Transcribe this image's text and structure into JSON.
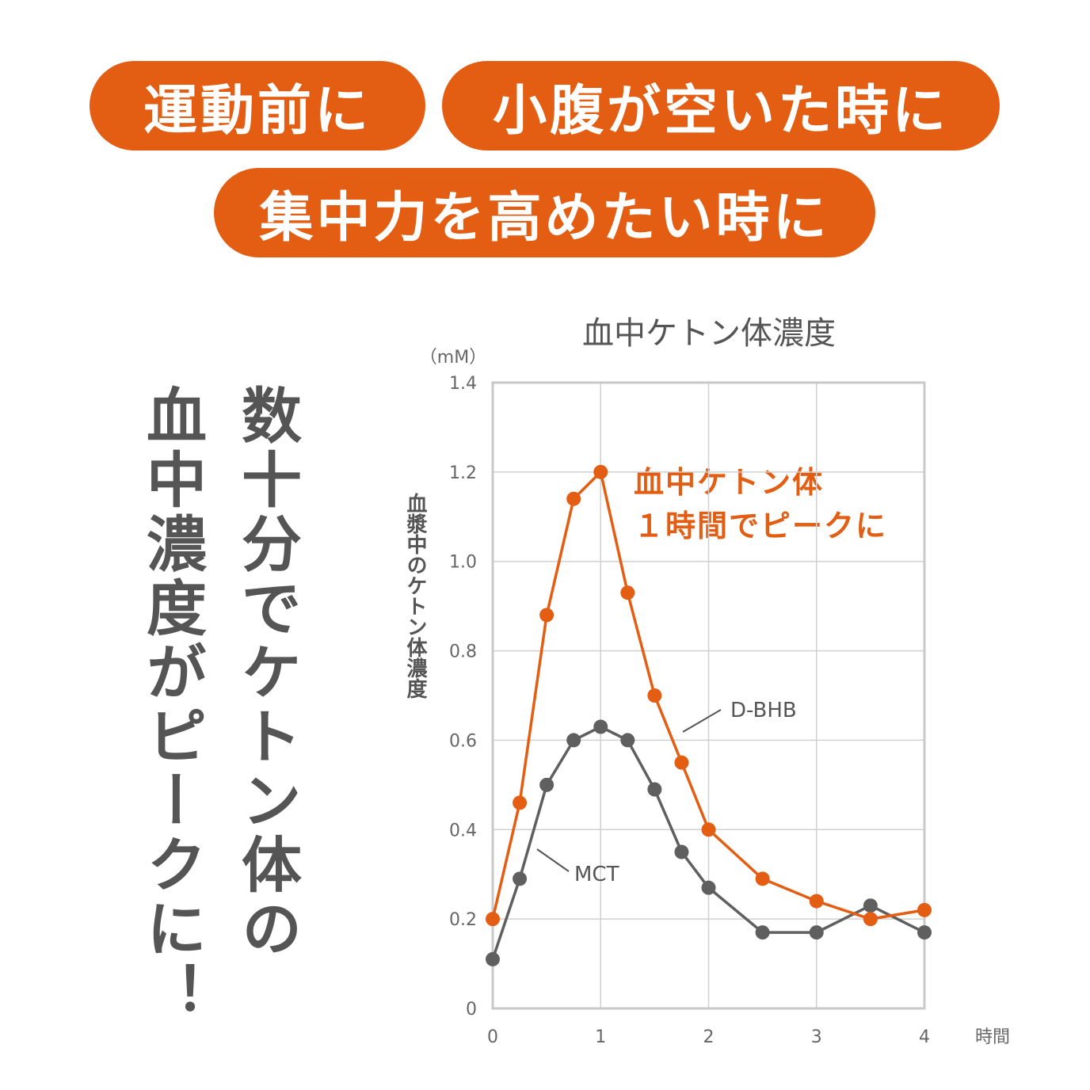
{
  "badges": [
    "運動前に",
    "小腹が空いた時に",
    "集中力を高めたい時に"
  ],
  "headline": {
    "col1": "数十分でケトン体の",
    "col2": "血中濃度がピークに！"
  },
  "colors": {
    "accent": "#E35D12",
    "gray": "#5f5f5f"
  },
  "chart_data": {
    "type": "line",
    "title": "血中ケトン体濃度",
    "ylabel": "血漿中のケトン体濃度",
    "yunit": "（mM）",
    "xlabel": "時間",
    "xlim": [
      0,
      4
    ],
    "ylim": [
      0,
      1.4
    ],
    "xticks": [
      "0",
      "1",
      "2",
      "3",
      "4"
    ],
    "yticks": [
      "0",
      "0.2",
      "0.4",
      "0.6",
      "0.8",
      "1.0",
      "1.2",
      "1.4"
    ],
    "grid": true,
    "x": [
      0,
      0.25,
      0.5,
      0.75,
      1,
      1.25,
      1.5,
      1.75,
      2,
      2.5,
      3,
      3.5,
      4
    ],
    "series": [
      {
        "name": "D-BHB",
        "color": "#E35D12",
        "values": [
          0.2,
          0.46,
          0.88,
          1.14,
          1.2,
          0.93,
          0.7,
          0.55,
          0.4,
          0.29,
          0.24,
          0.2,
          0.22
        ]
      },
      {
        "name": "MCT",
        "color": "#5f5f5f",
        "values": [
          0.11,
          0.29,
          0.5,
          0.6,
          0.63,
          0.6,
          0.49,
          0.35,
          0.27,
          0.17,
          0.17,
          0.23,
          0.17
        ]
      }
    ],
    "annotation": [
      "血中ケトン体",
      "１時間でピークに"
    ]
  }
}
